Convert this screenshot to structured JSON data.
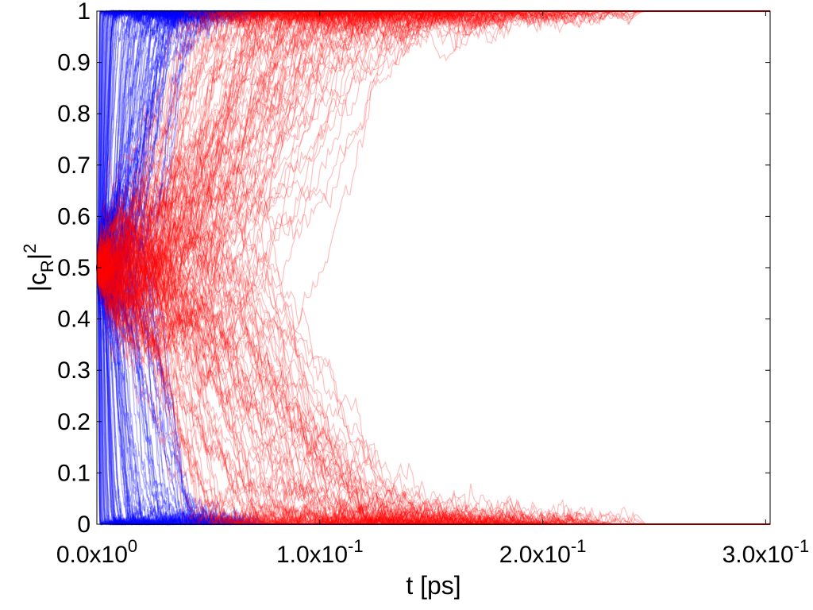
{
  "chart_data": {
    "type": "line",
    "xlabel": "t [ps]",
    "ylabel_main": "|c",
    "ylabel_sub": "R",
    "ylabel_tail": "|",
    "ylabel_sup": "2",
    "xlim": [
      0,
      0.302
    ],
    "ylim": [
      0,
      1
    ],
    "grid": false,
    "legend": "none",
    "x_ticks": [
      {
        "value": 0.0,
        "mantissa": "0.0x10",
        "exponent": "0"
      },
      {
        "value": 0.1,
        "mantissa": "1.0x10",
        "exponent": "-1"
      },
      {
        "value": 0.2,
        "mantissa": "2.0x10",
        "exponent": "-1"
      },
      {
        "value": 0.3,
        "mantissa": "3.0x10",
        "exponent": "-1"
      }
    ],
    "y_ticks": [
      {
        "value": 0,
        "label": "0"
      },
      {
        "value": 0.1,
        "label": "0.1"
      },
      {
        "value": 0.2,
        "label": "0.2"
      },
      {
        "value": 0.3,
        "label": "0.3"
      },
      {
        "value": 0.4,
        "label": "0.4"
      },
      {
        "value": 0.5,
        "label": "0.5"
      },
      {
        "value": 0.6,
        "label": "0.6"
      },
      {
        "value": 0.7,
        "label": "0.7"
      },
      {
        "value": 0.8,
        "label": "0.8"
      },
      {
        "value": 0.9,
        "label": "0.9"
      },
      {
        "value": 1,
        "label": "1"
      }
    ],
    "series": [
      {
        "color": "#0000ff",
        "opacity": 0.3,
        "trajectory_count": 220,
        "start_value": 0.5,
        "collapse_time_range": [
          0.002,
          0.075
        ],
        "end_values": [
          0,
          1
        ]
      },
      {
        "color": "#ff0000",
        "opacity": 0.25,
        "trajectory_count": 170,
        "start_value": 0.5,
        "collapse_time_range": [
          0.07,
          0.245
        ],
        "end_values": [
          0,
          1
        ]
      }
    ]
  }
}
